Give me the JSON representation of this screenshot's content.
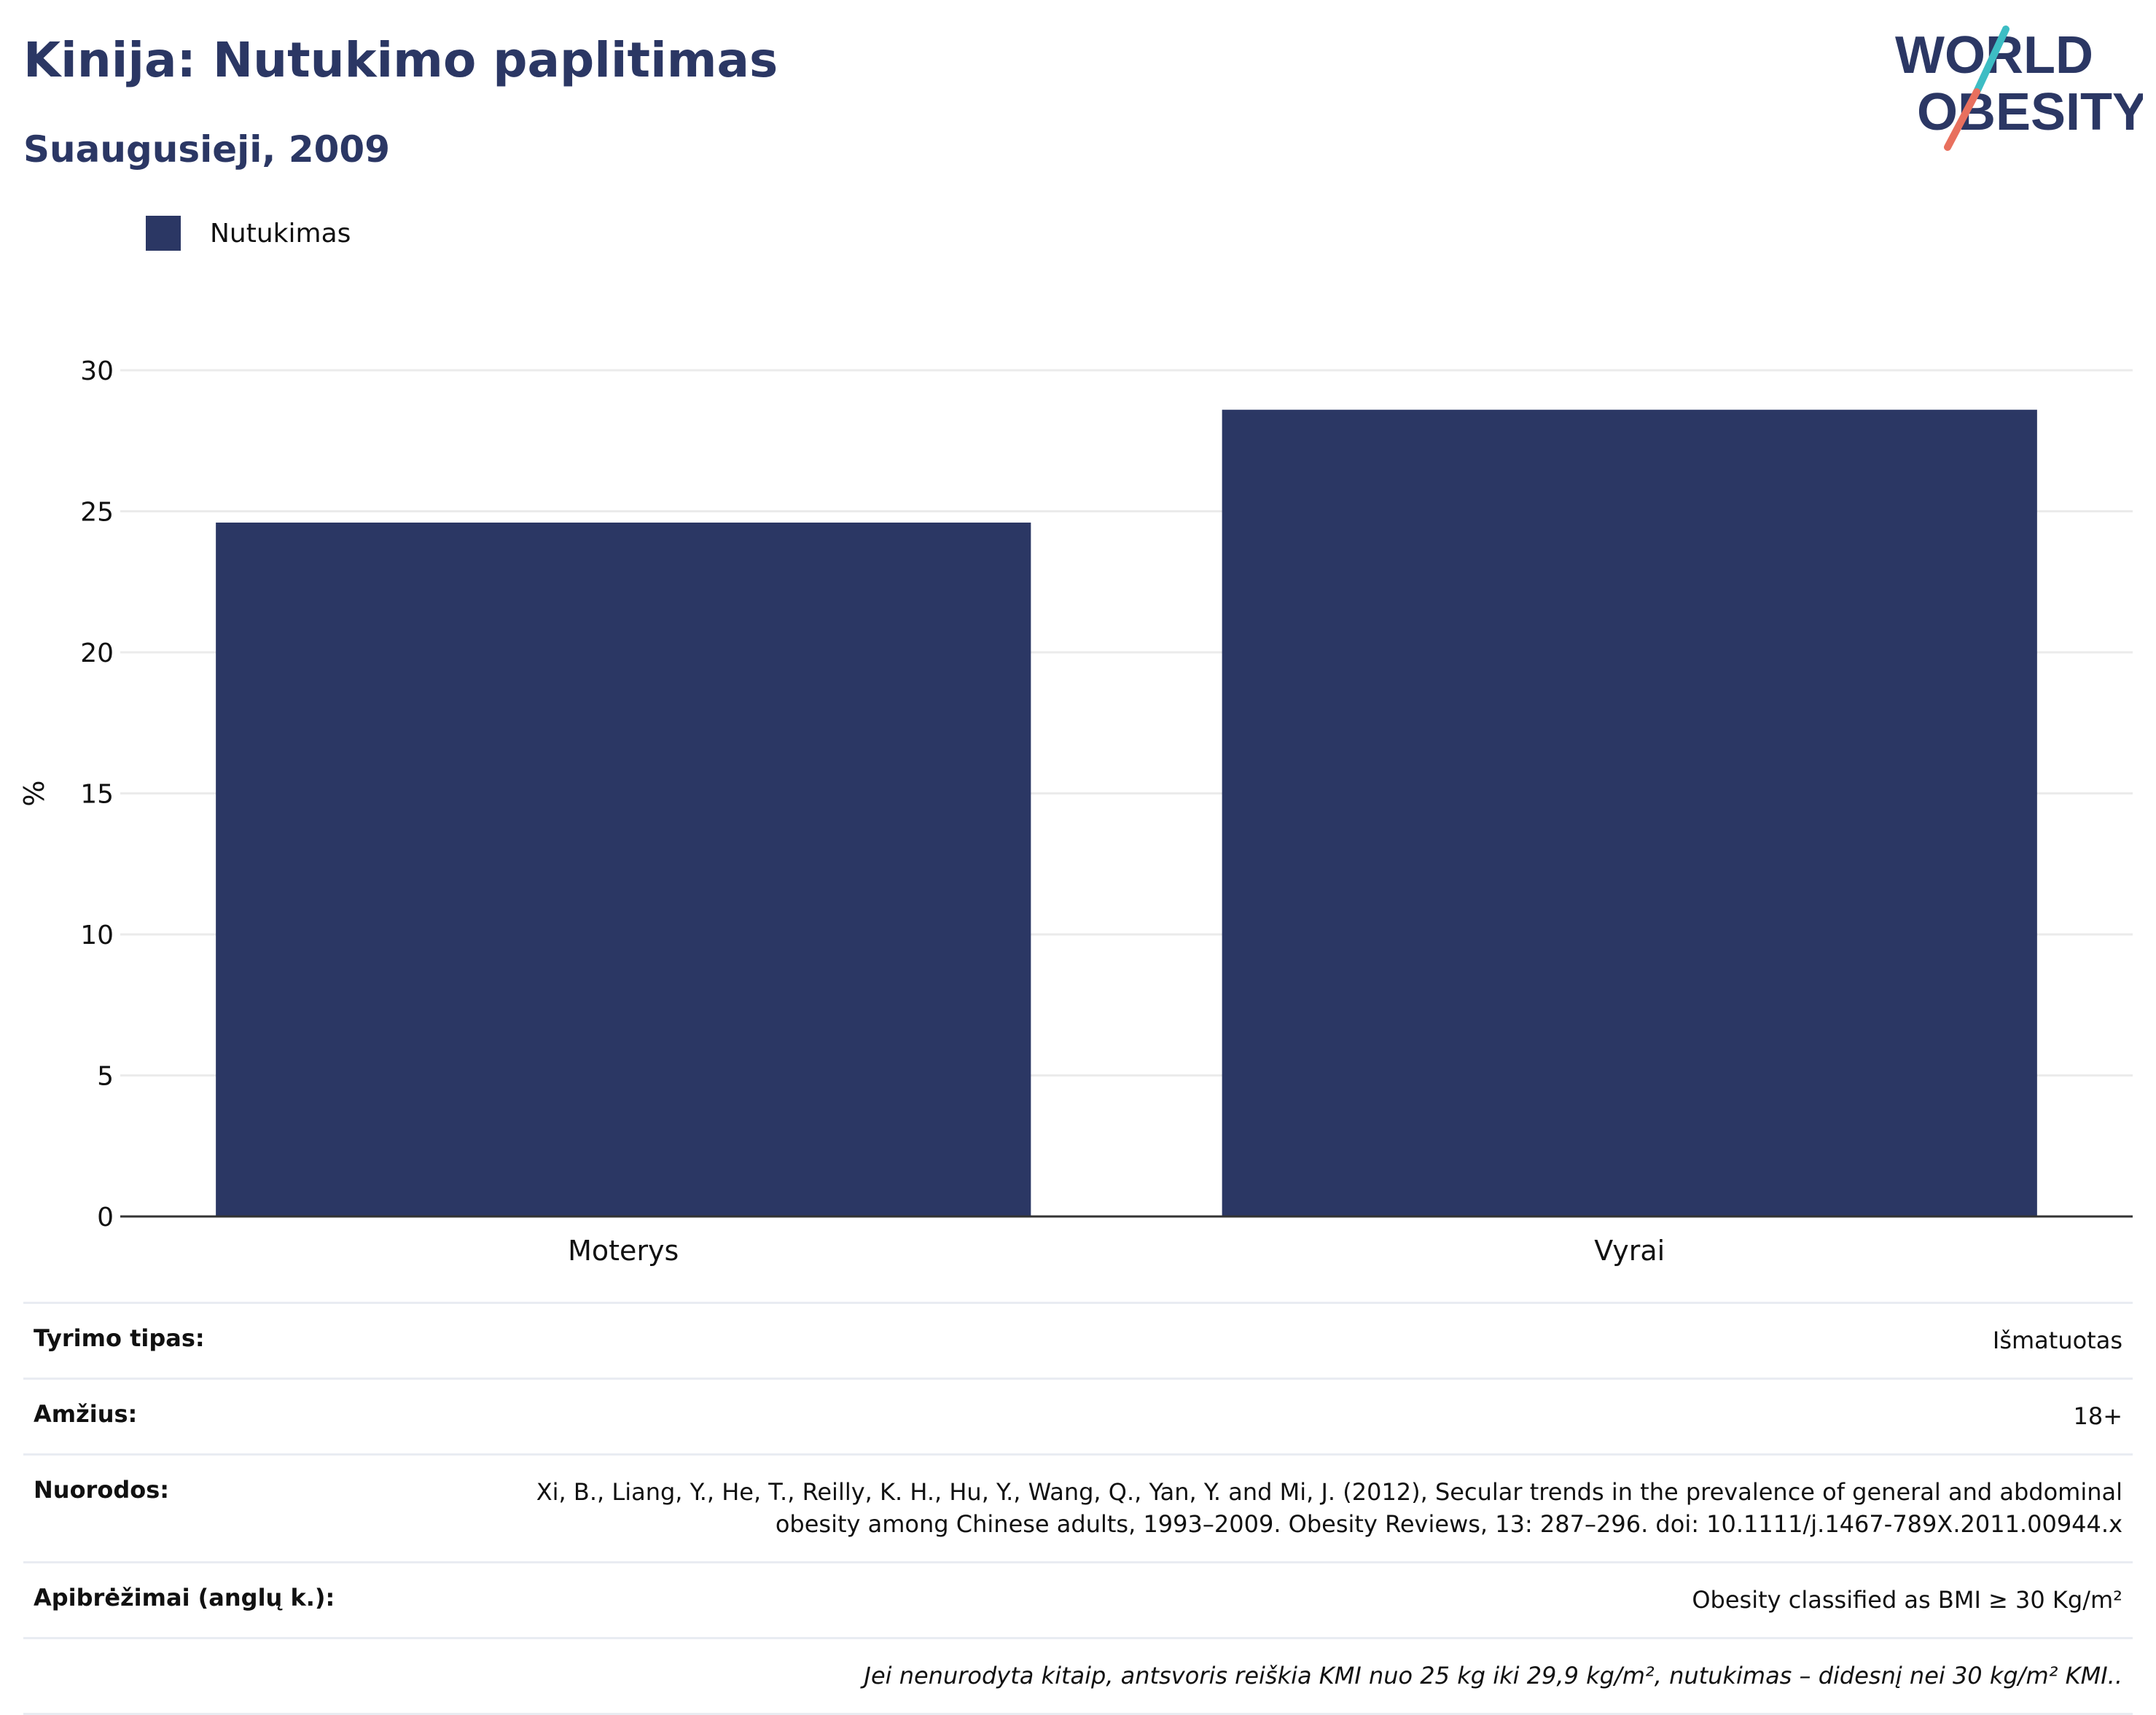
{
  "header": {
    "title": "Kinija: Nutukimo paplitimas",
    "subtitle": "Suaugusieji, 2009"
  },
  "logo": {
    "line1": "WORLD",
    "line2": "OBESITY",
    "colors": {
      "text": "#2b3764",
      "slash_top": "#3dbdc4",
      "slash_bottom": "#e8705e"
    }
  },
  "legend": {
    "label": "Nutukimas",
    "color": "#2b3764"
  },
  "chart_data": {
    "type": "bar",
    "categories": [
      "Moterys",
      "Vyrai"
    ],
    "series": [
      {
        "name": "Nutukimas",
        "values": [
          24.6,
          28.6
        ],
        "color": "#2b3764"
      }
    ],
    "ylabel": "%",
    "xlabel": "",
    "ylim": [
      0,
      30
    ],
    "yticks": [
      0,
      5,
      10,
      15,
      20,
      25,
      30
    ],
    "grid": true
  },
  "info": {
    "rows": [
      {
        "label": "Tyrimo tipas:",
        "value": "Išmatuotas"
      },
      {
        "label": "Amžius:",
        "value": "18+"
      },
      {
        "label": "Nuorodos:",
        "value": "Xi, B., Liang, Y., He, T., Reilly, K. H., Hu, Y., Wang, Q., Yan, Y. and Mi, J. (2012), Secular trends in the prevalence of general and abdominal obesity among Chinese adults, 1993–2009. Obesity Reviews, 13: 287–296. doi: 10.1111/j.1467-789X.2011.00944.x"
      },
      {
        "label": "Apibrėžimai (anglų k.):",
        "value": "Obesity classified as BMI ≥ 30 Kg/m²"
      }
    ],
    "note": "Jei nenurodyta kitaip, antsvoris reiškia KMI nuo 25 kg iki 29,9 kg/m², nutukimas – didesnį nei 30 kg/m² KMI.."
  }
}
